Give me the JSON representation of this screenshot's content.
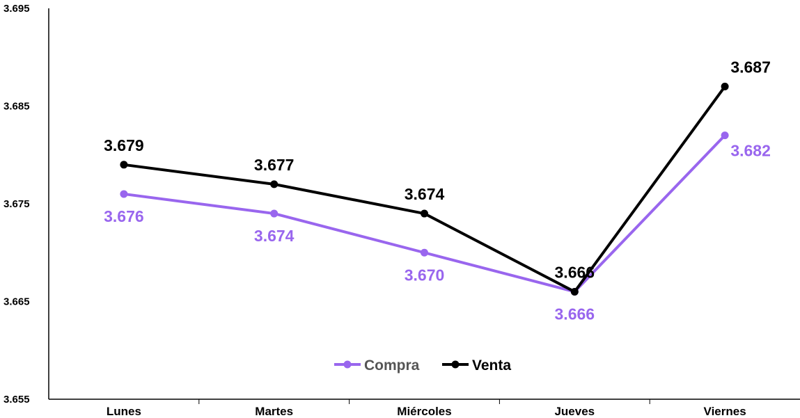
{
  "chart_data": {
    "type": "line",
    "title": "",
    "xlabel": "",
    "ylabel": "",
    "categories": [
      "Lunes",
      "Martes",
      "Miércoles",
      "Jueves",
      "Viernes"
    ],
    "ylim": [
      3.655,
      3.695
    ],
    "yticks": [
      "3.655",
      "3.665",
      "3.675",
      "3.685",
      "3.695"
    ],
    "grid": false,
    "legend_position": "bottom-center",
    "series": [
      {
        "name": "Compra",
        "color": "#9966ee",
        "values": [
          3.676,
          3.674,
          3.67,
          3.666,
          3.682
        ],
        "labels": [
          "3.676",
          "3.674",
          "3.670",
          "3.666",
          "3.682"
        ]
      },
      {
        "name": "Venta",
        "color": "#000000",
        "values": [
          3.679,
          3.677,
          3.674,
          3.666,
          3.687
        ],
        "labels": [
          "3.679",
          "3.677",
          "3.674",
          "3.666",
          "3.687"
        ]
      }
    ]
  }
}
